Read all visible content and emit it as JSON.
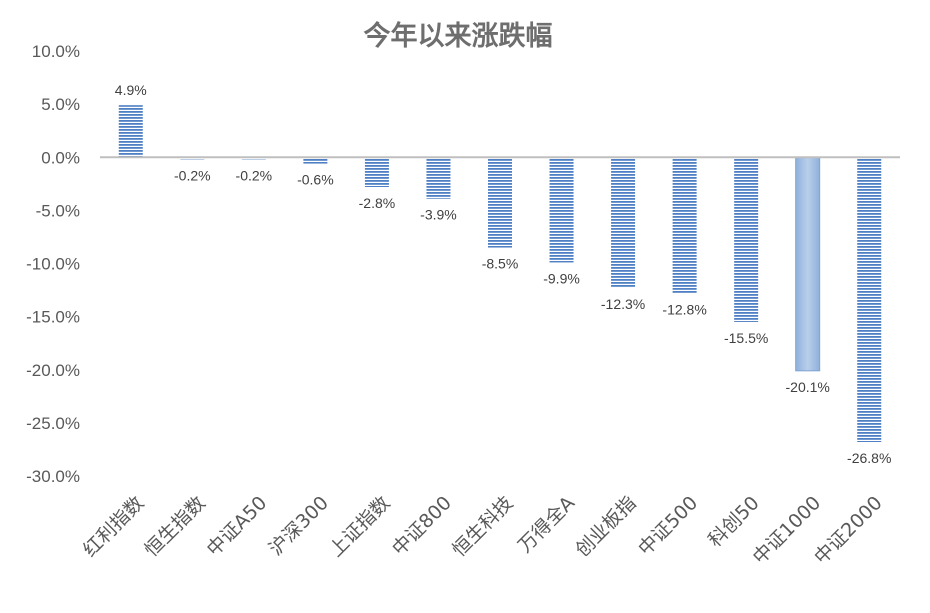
{
  "chart_data": {
    "type": "bar",
    "title": "今年以来涨跌幅",
    "categories": [
      "红利指数",
      "恒生指数",
      "中证A50",
      "沪深300",
      "上证指数",
      "中证800",
      "恒生科技",
      "万得全A",
      "创业板指",
      "中证500",
      "科创50",
      "中证1000",
      "中证2000"
    ],
    "values": [
      4.9,
      -0.2,
      -0.2,
      -0.6,
      -2.8,
      -3.9,
      -8.5,
      -9.9,
      -12.3,
      -12.8,
      -15.5,
      -20.1,
      -26.8
    ],
    "value_labels": [
      "4.9%",
      "-0.2%",
      "-0.2%",
      "-0.6%",
      "-2.8%",
      "-3.9%",
      "-8.5%",
      "-9.9%",
      "-12.3%",
      "-12.8%",
      "-15.5%",
      "-20.1%",
      "-26.8%"
    ],
    "ylim": [
      -30,
      10
    ],
    "yticks": [
      10,
      5,
      0,
      -5,
      -10,
      -15,
      -20,
      -25,
      -30
    ],
    "ytick_labels": [
      "10.0%",
      "5.0%",
      "0.0%",
      "-5.0%",
      "-10.0%",
      "-15.0%",
      "-20.0%",
      "-25.0%",
      "-30.0%"
    ],
    "xlabel": "",
    "ylabel": "",
    "grid": false,
    "legend": "none",
    "colors": {
      "bar_stripe": "#4f7fc4",
      "bar_fill": "#ffffff",
      "bar_highlight": "#9dbbe0",
      "axis": "#bfbfbf",
      "title": "#6e6e6e"
    },
    "highlighted_category": "中证1000"
  }
}
